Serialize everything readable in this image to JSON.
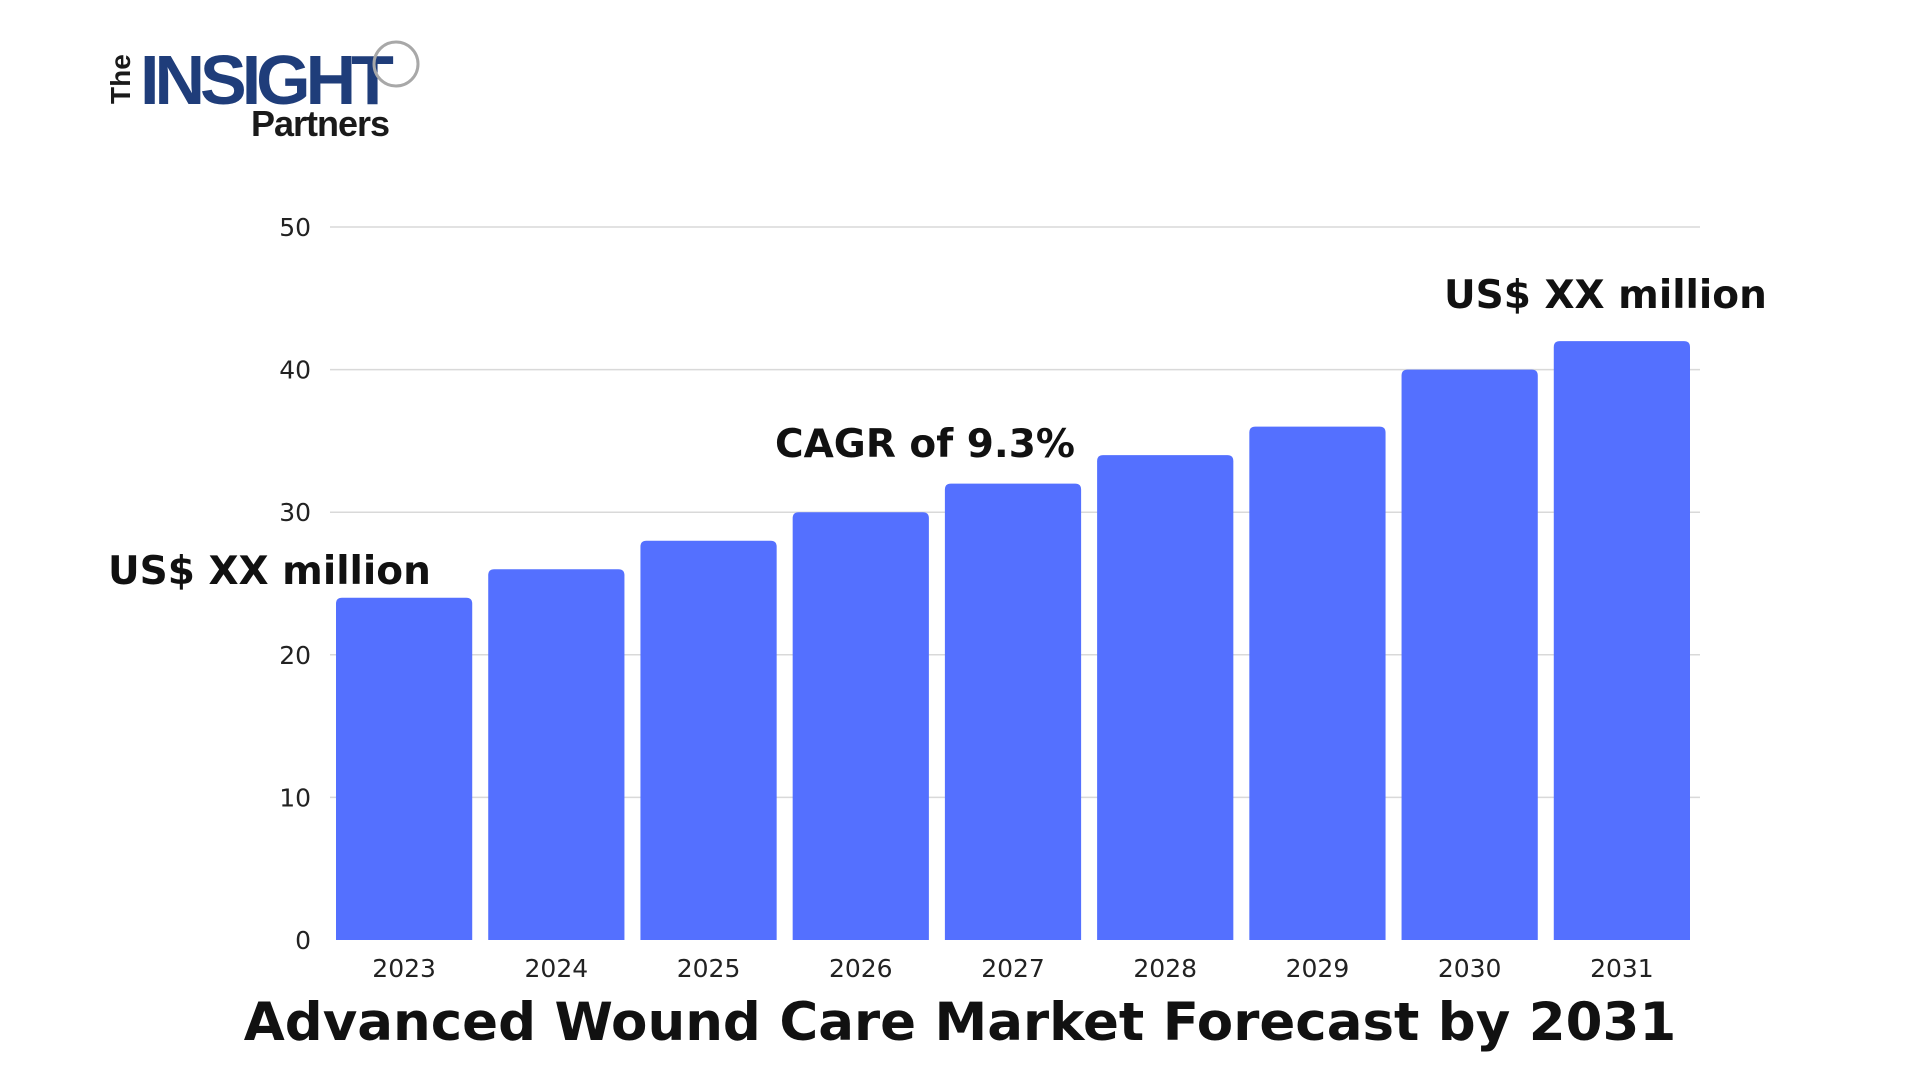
{
  "logo": {
    "word_the": "The",
    "word_insight": "INSIGHT",
    "word_partners": "Partners"
  },
  "colors": {
    "bar": "#5470FF",
    "grid": "#D9D9D9",
    "logo_navy": "#1F3D7A",
    "logo_dark": "#1A1A1A",
    "text": "#111111"
  },
  "chart_data": {
    "type": "bar",
    "title": "Advanced Wound Care Market Forecast by 2031",
    "xlabel": "",
    "ylabel": "",
    "categories": [
      "2023",
      "2024",
      "2025",
      "2026",
      "2027",
      "2028",
      "2029",
      "2030",
      "2031"
    ],
    "values": [
      24,
      26,
      28,
      30,
      32,
      34,
      36,
      40,
      42
    ],
    "ylim": [
      0,
      50
    ],
    "yticks": [
      "0",
      "10",
      "20",
      "30",
      "40",
      "50"
    ],
    "grid": true,
    "legend": "none",
    "annotations": {
      "start": "US$ XX million",
      "cagr": "CAGR of 9.3%",
      "end": "US$ XX million"
    }
  }
}
